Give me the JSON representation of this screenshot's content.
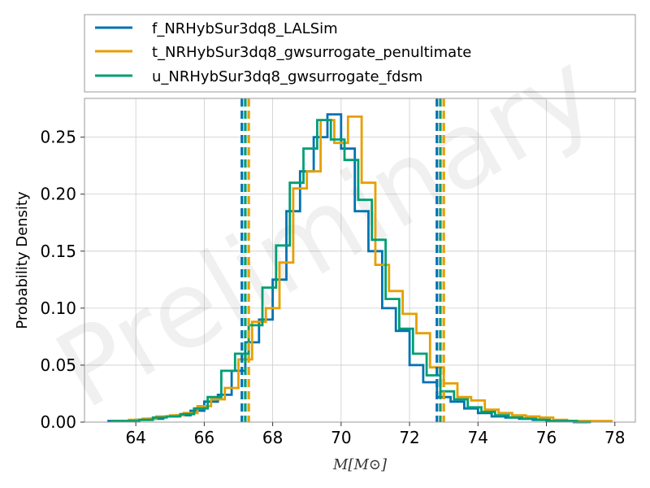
{
  "chart_data": {
    "type": "histogram",
    "title": "",
    "xlabel": "M[M⊙]",
    "ylabel": "Probability Density",
    "xlim": [
      62.5,
      78.6
    ],
    "ylim": [
      0,
      0.284
    ],
    "xticks": [
      64,
      66,
      68,
      70,
      72,
      74,
      76,
      78
    ],
    "yticks": [
      0.0,
      0.05,
      0.1,
      0.15,
      0.2,
      0.25
    ],
    "ytick_labels": [
      "0.00",
      "0.05",
      "0.10",
      "0.15",
      "0.20",
      "0.25"
    ],
    "grid": true,
    "legend_position": "above-plot",
    "watermark": "Preliminary",
    "series": [
      {
        "name": "f_NRHybSur3dq8_LALSim",
        "color": "#0072B2",
        "edges": [
          63.2,
          63.6,
          64.0,
          64.4,
          64.8,
          65.2,
          65.6,
          66.0,
          66.4,
          66.8,
          67.2,
          67.6,
          68.0,
          68.4,
          68.8,
          69.2,
          69.6,
          70.0,
          70.4,
          70.8,
          71.2,
          71.6,
          72.0,
          72.4,
          72.8,
          73.2,
          73.6,
          74.0,
          74.4,
          74.8,
          75.2,
          75.6,
          76.0,
          76.4,
          76.8,
          77.2
        ],
        "values": [
          0.001,
          0.001,
          0.002,
          0.003,
          0.005,
          0.006,
          0.01,
          0.018,
          0.024,
          0.045,
          0.07,
          0.09,
          0.125,
          0.185,
          0.22,
          0.25,
          0.27,
          0.24,
          0.185,
          0.15,
          0.1,
          0.08,
          0.05,
          0.035,
          0.022,
          0.018,
          0.012,
          0.008,
          0.005,
          0.004,
          0.003,
          0.002,
          0.001,
          0.001,
          0.0
        ],
        "ci_lines": [
          67.1,
          72.8
        ]
      },
      {
        "name": "t_NRHybSur3dq8_gwsurrogate_penultimate",
        "color": "#E69F00",
        "edges": [
          63.4,
          63.8,
          64.2,
          64.6,
          65.0,
          65.4,
          65.8,
          66.2,
          66.6,
          67.0,
          67.4,
          67.8,
          68.2,
          68.6,
          69.0,
          69.4,
          69.8,
          70.2,
          70.6,
          71.0,
          71.4,
          71.8,
          72.2,
          72.6,
          73.0,
          73.4,
          73.8,
          74.2,
          74.6,
          75.0,
          75.4,
          75.8,
          76.2,
          76.6,
          77.0,
          77.4,
          77.9
        ],
        "values": [
          0.001,
          0.002,
          0.003,
          0.005,
          0.006,
          0.008,
          0.014,
          0.02,
          0.03,
          0.055,
          0.088,
          0.1,
          0.14,
          0.205,
          0.22,
          0.265,
          0.245,
          0.268,
          0.21,
          0.138,
          0.115,
          0.095,
          0.078,
          0.048,
          0.034,
          0.022,
          0.019,
          0.011,
          0.008,
          0.006,
          0.005,
          0.004,
          0.002,
          0.001,
          0.001,
          0.001
        ],
        "ci_lines": [
          67.3,
          73.0
        ]
      },
      {
        "name": "u_NRHybSur3dq8_gwsurrogate_fdsm",
        "color": "#009E73",
        "edges": [
          63.3,
          63.7,
          64.1,
          64.5,
          64.9,
          65.3,
          65.7,
          66.1,
          66.5,
          66.9,
          67.3,
          67.7,
          68.1,
          68.5,
          68.9,
          69.3,
          69.7,
          70.1,
          70.5,
          70.9,
          71.3,
          71.7,
          72.1,
          72.5,
          72.9,
          73.3,
          73.7,
          74.1,
          74.5,
          74.9,
          75.3,
          75.7,
          76.1,
          76.5,
          76.9,
          77.3
        ],
        "values": [
          0.001,
          0.001,
          0.002,
          0.004,
          0.005,
          0.007,
          0.012,
          0.022,
          0.045,
          0.06,
          0.085,
          0.118,
          0.155,
          0.21,
          0.24,
          0.265,
          0.248,
          0.23,
          0.195,
          0.16,
          0.108,
          0.082,
          0.06,
          0.041,
          0.027,
          0.02,
          0.013,
          0.009,
          0.006,
          0.004,
          0.003,
          0.002,
          0.001,
          0.001,
          0.0
        ],
        "ci_lines": [
          67.2,
          72.9
        ]
      }
    ]
  }
}
